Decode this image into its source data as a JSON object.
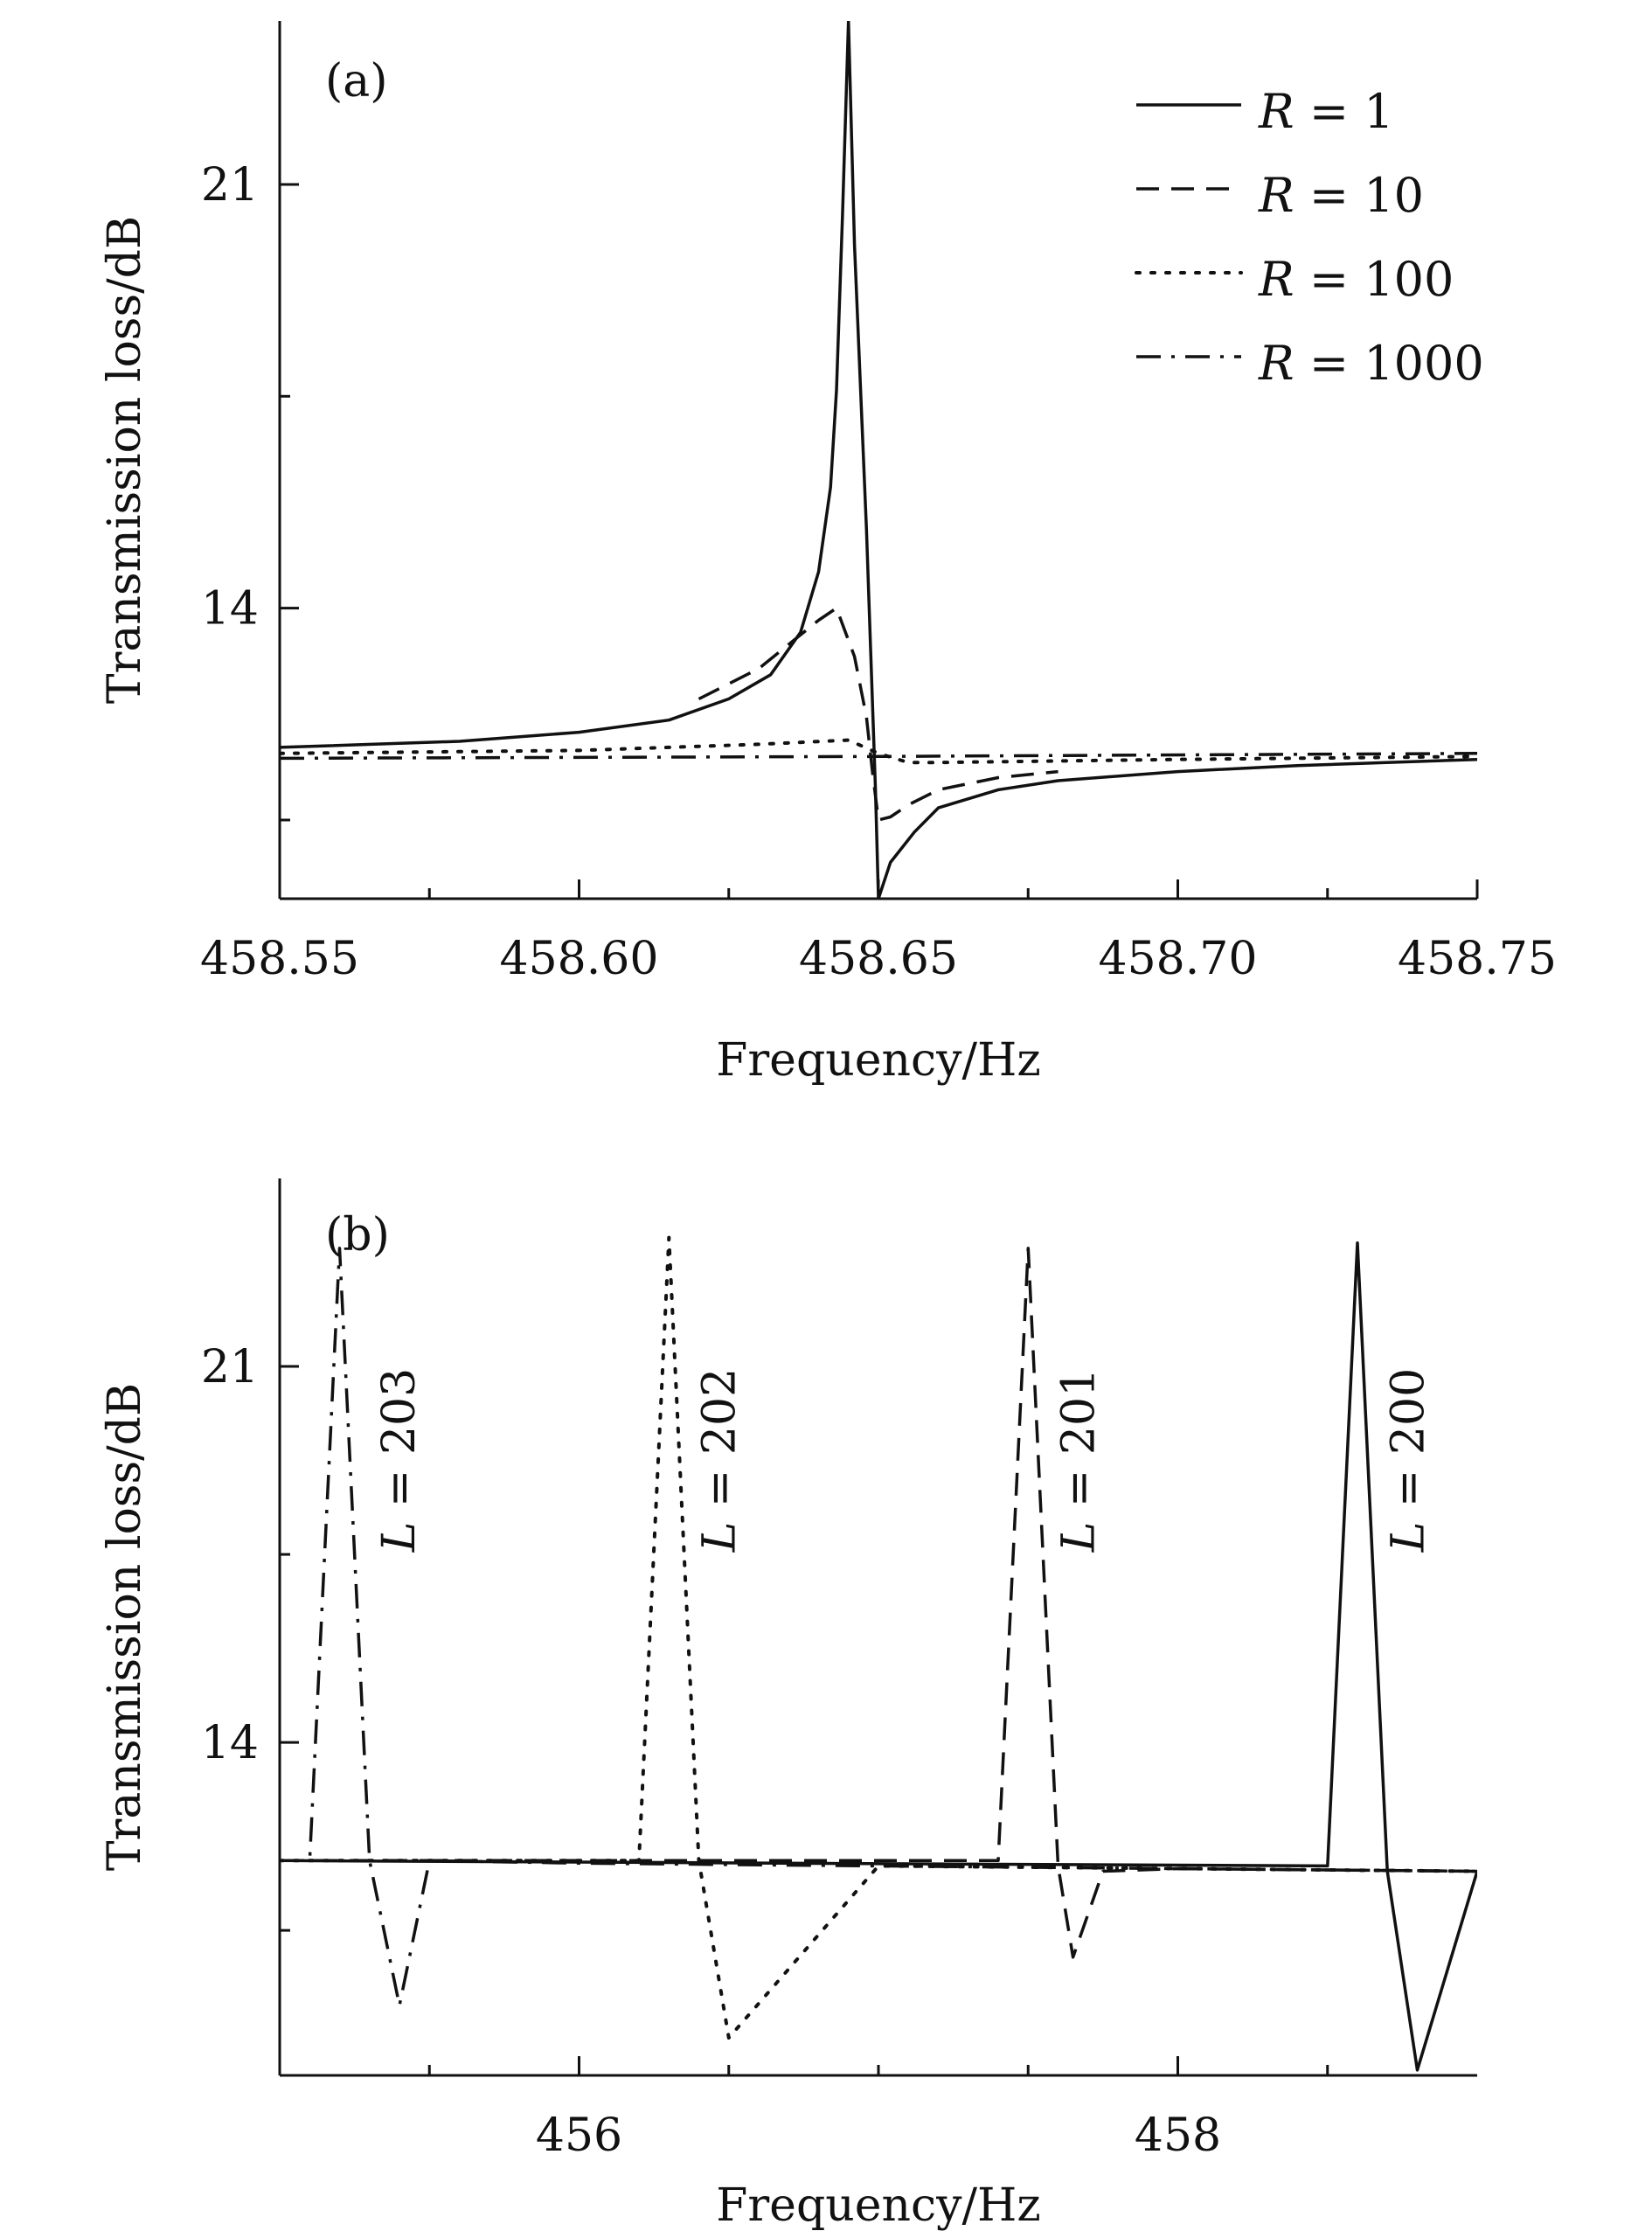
{
  "chart_data": [
    {
      "type": "line",
      "panel_label": "(a)",
      "xlabel": "Frequency/Hz",
      "ylabel": "Transmission loss/dB",
      "xlim": [
        458.55,
        458.75
      ],
      "ylim": [
        9.2,
        23.7
      ],
      "xticks": [
        458.55,
        458.6,
        458.65,
        458.7,
        458.75
      ],
      "xtick_labels": [
        "458.55",
        "458.60",
        "458.65",
        "458.70",
        "458.75"
      ],
      "yticks": [
        14,
        21
      ],
      "ytick_labels": [
        "14",
        "21"
      ],
      "legend_position": "top-right",
      "series": [
        {
          "name": "R = 1",
          "legend_var": "R",
          "legend_eq": "= 1",
          "style": "solid",
          "x": [
            458.55,
            458.58,
            458.6,
            458.615,
            458.625,
            458.632,
            458.637,
            458.64,
            458.642,
            458.643,
            458.644,
            458.645,
            458.646,
            458.648,
            458.6495,
            458.65,
            458.652,
            458.656,
            458.66,
            458.67,
            458.68,
            458.7,
            458.72,
            458.75
          ],
          "y": [
            11.7,
            11.8,
            11.95,
            12.15,
            12.5,
            12.9,
            13.6,
            14.6,
            16.0,
            17.6,
            20.5,
            23.7,
            20.0,
            15.3,
            11.0,
            9.2,
            9.8,
            10.3,
            10.7,
            11.0,
            11.15,
            11.3,
            11.4,
            11.5
          ]
        },
        {
          "name": "R = 10",
          "legend_var": "R",
          "legend_eq": "= 10",
          "style": "dash",
          "x": [
            458.62,
            458.63,
            458.635,
            458.64,
            458.643,
            458.646,
            458.648,
            458.649,
            458.65,
            458.652,
            458.655,
            458.66,
            458.67,
            458.68
          ],
          "y": [
            12.5,
            13.0,
            13.4,
            13.8,
            14.0,
            13.2,
            12.2,
            11.3,
            10.5,
            10.55,
            10.75,
            11.0,
            11.2,
            11.3
          ]
        },
        {
          "name": "R = 100",
          "legend_var": "R",
          "legend_eq": "= 100",
          "style": "dot",
          "x": [
            458.55,
            458.6,
            458.63,
            458.645,
            458.65,
            458.655,
            458.66,
            458.7,
            458.75
          ],
          "y": [
            11.6,
            11.65,
            11.75,
            11.82,
            11.6,
            11.45,
            11.45,
            11.5,
            11.55
          ]
        },
        {
          "name": "R = 1000",
          "legend_var": "R",
          "legend_eq": "= 1000",
          "style": "dashdot",
          "x": [
            458.55,
            458.65,
            458.75
          ],
          "y": [
            11.52,
            11.55,
            11.6
          ]
        }
      ]
    },
    {
      "type": "line",
      "panel_label": "(b)",
      "xlabel": "Frequency/Hz",
      "ylabel": "Transmission loss/dB",
      "xlim": [
        455.0,
        459.0
      ],
      "ylim": [
        7.8,
        24.5
      ],
      "xticks": [
        456,
        458
      ],
      "xtick_labels": [
        "456",
        "458"
      ],
      "xminor": [
        455.5,
        456.5,
        457.0,
        457.5,
        458.5
      ],
      "yticks": [
        14,
        21
      ],
      "ytick_labels": [
        "14",
        "21"
      ],
      "series": [
        {
          "name": "L = 203",
          "label_var": "L",
          "label_eq": "= 203",
          "style": "dashdot",
          "label_x": 455.45,
          "x": [
            455.0,
            455.1,
            455.2,
            455.3,
            455.4,
            455.5,
            456.0,
            457.0,
            458.0,
            459.0
          ],
          "y": [
            11.8,
            11.8,
            23.2,
            11.8,
            9.1,
            11.8,
            11.75,
            11.7,
            11.65,
            11.6
          ]
        },
        {
          "name": "L = 202",
          "label_var": "L",
          "label_eq": "= 202",
          "style": "dot",
          "label_x": 456.52,
          "x": [
            455.0,
            456.2,
            456.3,
            456.4,
            456.5,
            457.0,
            459.0
          ],
          "y": [
            11.8,
            11.8,
            23.4,
            11.8,
            8.5,
            11.7,
            11.6
          ]
        },
        {
          "name": "L = 201",
          "label_var": "L",
          "label_eq": "= 201",
          "style": "dash",
          "label_x": 457.72,
          "x": [
            455.0,
            457.4,
            457.5,
            457.6,
            457.65,
            457.75,
            458.0,
            459.0
          ],
          "y": [
            11.8,
            11.8,
            23.2,
            11.7,
            10.0,
            11.6,
            11.65,
            11.6
          ]
        },
        {
          "name": "L = 200",
          "label_var": "L",
          "label_eq": "= 200",
          "style": "solid",
          "label_x": 458.82,
          "x": [
            455.0,
            458.5,
            458.6,
            458.7,
            458.8,
            459.0
          ],
          "y": [
            11.8,
            11.7,
            23.3,
            11.6,
            7.9,
            11.6
          ]
        }
      ]
    }
  ]
}
